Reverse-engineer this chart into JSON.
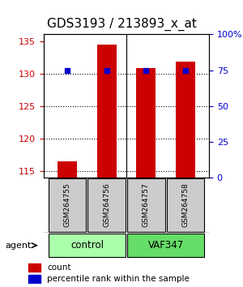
{
  "title": "GDS3193 / 213893_x_at",
  "samples": [
    "GSM264755",
    "GSM264756",
    "GSM264757",
    "GSM264758"
  ],
  "counts": [
    116.5,
    134.5,
    130.8,
    131.8
  ],
  "percentiles": [
    75,
    75,
    75,
    75
  ],
  "groups": [
    "control",
    "control",
    "VAF347",
    "VAF347"
  ],
  "group_labels": [
    "control",
    "VAF347"
  ],
  "group_colors": [
    "#aaffaa",
    "#55cc55"
  ],
  "ylim_left": [
    114,
    136
  ],
  "ylim_right": [
    0,
    100
  ],
  "yticks_left": [
    115,
    120,
    125,
    130,
    135
  ],
  "yticks_right": [
    0,
    25,
    50,
    75,
    100
  ],
  "ytick_labels_right": [
    "0",
    "25",
    "50",
    "75",
    "100%"
  ],
  "bar_color": "#cc0000",
  "dot_color": "#0000cc",
  "bar_width": 0.5,
  "agent_label": "agent",
  "legend_count_label": "count",
  "legend_pct_label": "percentile rank within the sample",
  "title_fontsize": 11,
  "axis_label_color_left": "#cc0000",
  "axis_label_color_right": "#0000cc"
}
